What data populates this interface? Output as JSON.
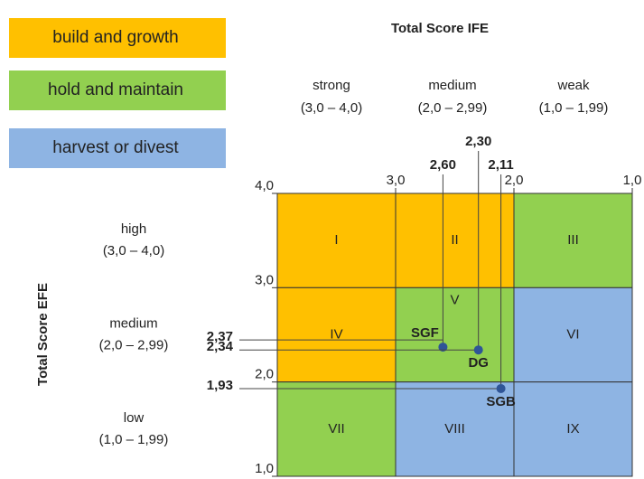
{
  "legend": [
    {
      "label": "build and growth",
      "color": "#FFC000"
    },
    {
      "label": "hold and maintain",
      "color": "#92D050"
    },
    {
      "label": "harvest or divest",
      "color": "#8EB4E3"
    }
  ],
  "x_title": "Total Score IFE",
  "y_title": "Total Score EFE",
  "columns": [
    {
      "name": "strong",
      "range": "(3,0 – 4,0)"
    },
    {
      "name": "medium",
      "range": "(2,0 – 2,99)"
    },
    {
      "name": "weak",
      "range": "(1,0 – 1,99)"
    }
  ],
  "rows": [
    {
      "name": "high",
      "range": "(3,0 – 4,0)"
    },
    {
      "name": "medium",
      "range": "(2,0 – 2,99)"
    },
    {
      "name": "low",
      "range": "(1,0 – 1,99)"
    }
  ],
  "xlim": [
    4,
    1
  ],
  "ylim": [
    1,
    4
  ],
  "xticks": [
    {
      "value": 3,
      "label": "3,0"
    },
    {
      "value": 2,
      "label": "2,0"
    },
    {
      "value": 1,
      "label": "1,0"
    }
  ],
  "yticks": [
    {
      "value": 4,
      "label": "4,0"
    },
    {
      "value": 3,
      "label": "3,0"
    },
    {
      "value": 2,
      "label": "2,0"
    },
    {
      "value": 1,
      "label": "1,0"
    }
  ],
  "cells": [
    {
      "label": "I",
      "color": "#FFC000"
    },
    {
      "label": "II",
      "color": "#FFC000"
    },
    {
      "label": "III",
      "color": "#92D050"
    },
    {
      "label": "IV",
      "color": "#FFC000"
    },
    {
      "label": "V",
      "color": "#92D050"
    },
    {
      "label": "VI",
      "color": "#8EB4E3"
    },
    {
      "label": "VII",
      "color": "#92D050"
    },
    {
      "label": "VIII",
      "color": "#8EB4E3"
    },
    {
      "label": "IX",
      "color": "#8EB4E3"
    }
  ],
  "points": [
    {
      "name": "SGF",
      "x": {
        "value": 2.6,
        "label": "2,60"
      },
      "y": {
        "value": 2.37,
        "label": "2,37"
      }
    },
    {
      "name": "DG",
      "x": {
        "value": 2.3,
        "label": "2,30"
      },
      "y": {
        "value": 2.34,
        "label": "2,34"
      }
    },
    {
      "name": "SGB",
      "x": {
        "value": 2.11,
        "label": "2,11"
      },
      "y": {
        "value": 1.93,
        "label": "1,93"
      }
    }
  ],
  "point_color": "#2F5597"
}
